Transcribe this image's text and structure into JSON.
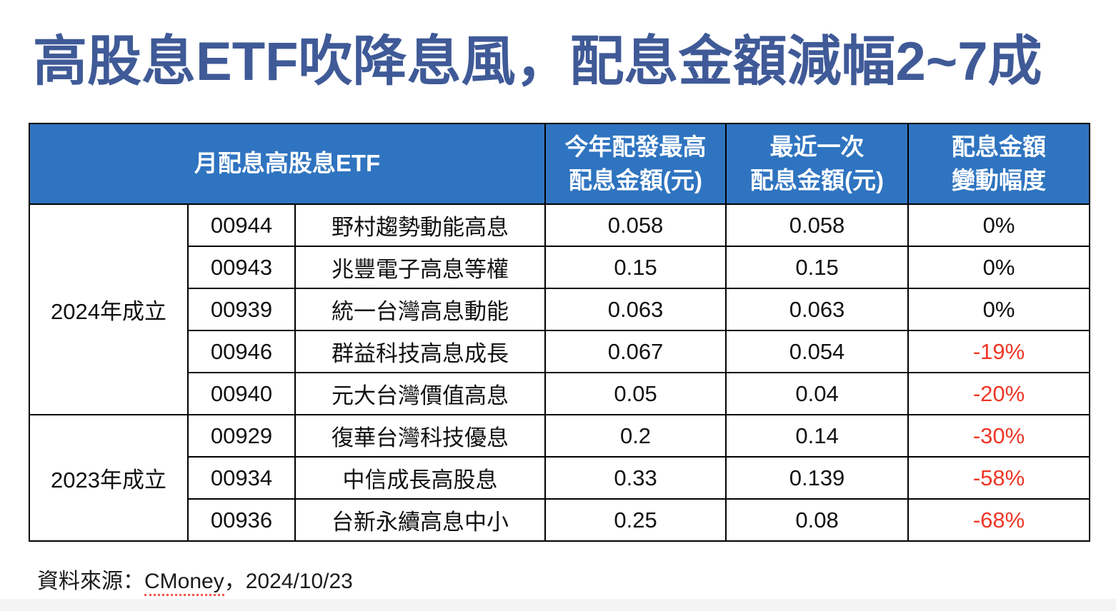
{
  "title": "高股息ETF吹降息風，配息金額減幅2~7成",
  "colors": {
    "title": "#3F5A97",
    "header_bg": "#2F74C0",
    "header_text": "#FFFFFF",
    "body_text": "#111111",
    "negative": "#EE3626",
    "border": "#000000",
    "source_underline": "#F0594A"
  },
  "table": {
    "header": {
      "etf": "月配息高股息ETF",
      "max": {
        "line1": "今年配發最高",
        "line2": "配息金額(元)"
      },
      "latest": {
        "line1": "最近一次",
        "line2": "配息金額(元)"
      },
      "change": {
        "line1": "配息金額",
        "line2": "變動幅度"
      }
    },
    "groups": [
      {
        "label": "2024年成立",
        "rows": [
          {
            "code": "00944",
            "name": "野村趨勢動能高息",
            "max": "0.058",
            "latest": "0.058",
            "change": "0%",
            "negative": false
          },
          {
            "code": "00943",
            "name": "兆豐電子高息等權",
            "max": "0.15",
            "latest": "0.15",
            "change": "0%",
            "negative": false
          },
          {
            "code": "00939",
            "name": "統一台灣高息動能",
            "max": "0.063",
            "latest": "0.063",
            "change": "0%",
            "negative": false
          },
          {
            "code": "00946",
            "name": "群益科技高息成長",
            "max": "0.067",
            "latest": "0.054",
            "change": "-19%",
            "negative": true
          },
          {
            "code": "00940",
            "name": "元大台灣價值高息",
            "max": "0.05",
            "latest": "0.04",
            "change": "-20%",
            "negative": true
          }
        ]
      },
      {
        "label": "2023年成立",
        "rows": [
          {
            "code": "00929",
            "name": "復華台灣科技優息",
            "max": "0.2",
            "latest": "0.14",
            "change": "-30%",
            "negative": true
          },
          {
            "code": "00934",
            "name": "中信成長高股息",
            "max": "0.33",
            "latest": "0.139",
            "change": "-58%",
            "negative": true
          },
          {
            "code": "00936",
            "name": "台新永續高息中小",
            "max": "0.25",
            "latest": "0.08",
            "change": "-68%",
            "negative": true
          }
        ]
      }
    ]
  },
  "footer": {
    "prefix": "資料來源：",
    "source": "CMoney",
    "suffix": "，2024/10/23"
  },
  "chart_data": {
    "type": "table",
    "title": "高股息ETF吹降息風，配息金額減幅2~7成",
    "merged_header_cols_1_to_3": "月配息高股息ETF",
    "column_headers": [
      "月配息高股息ETF",
      "今年配發最高配息金額(元)",
      "最近一次配息金額(元)",
      "配息金額變動幅度"
    ],
    "row_groups": [
      {
        "group": "2024年成立",
        "rows": [
          [
            "00944",
            "野村趨勢動能高息",
            0.058,
            0.058,
            "0%"
          ],
          [
            "00943",
            "兆豐電子高息等權",
            0.15,
            0.15,
            "0%"
          ],
          [
            "00939",
            "統一台灣高息動能",
            0.063,
            0.063,
            "0%"
          ],
          [
            "00946",
            "群益科技高息成長",
            0.067,
            0.054,
            "-19%"
          ],
          [
            "00940",
            "元大台灣價值高息",
            0.05,
            0.04,
            "-20%"
          ]
        ]
      },
      {
        "group": "2023年成立",
        "rows": [
          [
            "00929",
            "復華台灣科技優息",
            0.2,
            0.14,
            "-30%"
          ],
          [
            "00934",
            "中信成長高股息",
            0.33,
            0.139,
            "-58%"
          ],
          [
            "00936",
            "台新永續高息中小",
            0.25,
            0.08,
            "-68%"
          ]
        ]
      }
    ],
    "source": "資料來源：CMoney，2024/10/23"
  }
}
